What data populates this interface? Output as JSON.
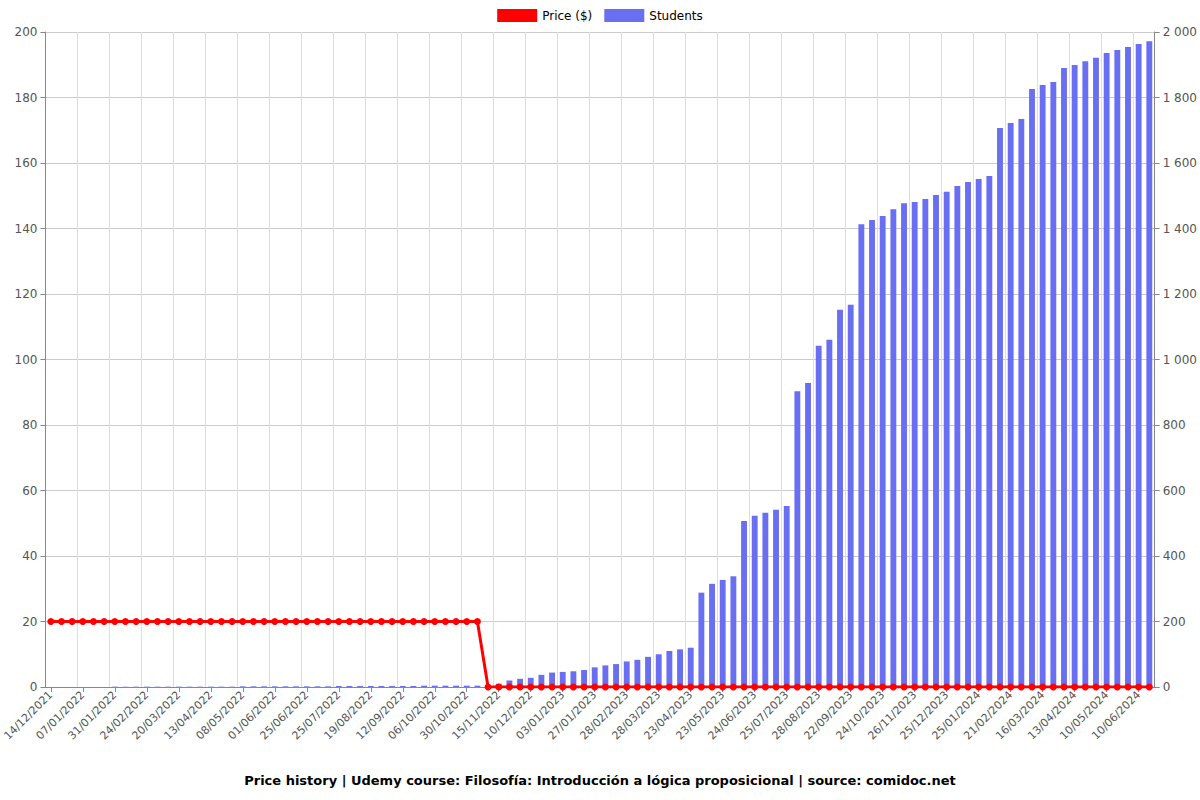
{
  "chart_data": {
    "type": "bar",
    "title": "Price history | Udemy course: Filosofía: Introducción a lógica proposicional | source: comidoc.net",
    "categories": [
      "14/12/2021",
      null,
      null,
      "07/01/2022",
      null,
      null,
      "31/01/2022",
      null,
      null,
      "24/02/2022",
      null,
      null,
      "20/03/2022",
      null,
      null,
      "13/04/2022",
      null,
      null,
      "08/05/2022",
      null,
      null,
      "01/06/2022",
      null,
      null,
      "25/06/2022",
      null,
      null,
      "25/07/2022",
      null,
      null,
      "19/08/2022",
      null,
      null,
      "12/09/2022",
      null,
      null,
      "06/10/2022",
      null,
      null,
      "30/10/2022",
      null,
      null,
      "15/11/2022",
      null,
      null,
      "10/12/2022",
      null,
      null,
      "03/01/2023",
      null,
      null,
      "27/01/2023",
      null,
      null,
      "28/02/2023",
      null,
      null,
      "28/03/2023",
      null,
      null,
      "23/04/2023",
      null,
      null,
      "23/05/2023",
      null,
      null,
      "24/06/2023",
      null,
      null,
      "25/07/2023",
      null,
      null,
      "28/08/2023",
      null,
      null,
      "22/09/2023",
      null,
      null,
      "24/10/2023",
      null,
      null,
      "26/11/2023",
      null,
      null,
      "25/12/2023",
      null,
      null,
      "25/01/2024",
      null,
      null,
      "21/02/2024",
      null,
      null,
      "16/03/2024",
      null,
      null,
      "13/04/2024",
      null,
      null,
      "10/05/2024",
      null,
      null,
      "10/06/2024",
      null
    ],
    "series": [
      {
        "name": "Price ($)",
        "type": "line",
        "color": "#ff0000",
        "marker": "circle",
        "values": [
          20,
          20,
          20,
          20,
          20,
          20,
          20,
          20,
          20,
          20,
          20,
          20,
          20,
          20,
          20,
          20,
          20,
          20,
          20,
          20,
          20,
          20,
          20,
          20,
          20,
          20,
          20,
          20,
          20,
          20,
          20,
          20,
          20,
          20,
          20,
          20,
          20,
          20,
          20,
          20,
          20,
          0,
          0,
          0,
          0,
          0,
          0,
          0,
          0,
          0,
          0,
          0,
          0,
          0,
          0,
          0,
          0,
          0,
          0,
          0,
          0,
          0,
          0,
          0,
          0,
          0,
          0,
          0,
          0,
          0,
          0,
          0,
          0,
          0,
          0,
          0,
          0,
          0,
          0,
          0,
          0,
          0,
          0,
          0,
          0,
          0,
          0,
          0,
          0,
          0,
          0,
          0,
          0,
          0,
          0,
          0,
          0,
          0,
          0,
          0,
          0,
          0,
          0,
          0
        ]
      },
      {
        "name": "Students",
        "type": "bar",
        "color": "#6a6ef0",
        "axis": "y2",
        "values": [
          0,
          0,
          0,
          0,
          0,
          0,
          1,
          1,
          1,
          1,
          1,
          1,
          1,
          1,
          1,
          1,
          1,
          1,
          2,
          2,
          2,
          2,
          2,
          2,
          2,
          2,
          2,
          3,
          3,
          3,
          3,
          3,
          3,
          3,
          3,
          4,
          4,
          4,
          4,
          4,
          4,
          5,
          10,
          20,
          25,
          28,
          37,
          44,
          46,
          48,
          52,
          60,
          66,
          70,
          78,
          83,
          92,
          100,
          110,
          115,
          120,
          288,
          315,
          327,
          338,
          507,
          523,
          532,
          541,
          553,
          903,
          928,
          1042,
          1060,
          1152,
          1167,
          1413,
          1426,
          1438,
          1459,
          1477,
          1481,
          1490,
          1502,
          1512,
          1530,
          1542,
          1551,
          1560,
          1707,
          1722,
          1734,
          1826,
          1838,
          1847,
          1890,
          1899,
          1911,
          1921,
          1936,
          1945,
          1954,
          1963,
          1972
        ]
      }
    ],
    "ylim": [
      0,
      200
    ],
    "yticks": [
      0,
      20,
      40,
      60,
      80,
      100,
      120,
      140,
      160,
      180,
      200
    ],
    "y2lim": [
      0,
      2000
    ],
    "y2ticks": [
      0,
      200,
      400,
      600,
      800,
      {
        "value": 1000,
        "label": "1 000"
      },
      {
        "value": 1200,
        "label": "1 200"
      },
      {
        "value": 1400,
        "label": "1 400"
      },
      {
        "value": 1600,
        "label": "1 600"
      },
      {
        "value": 1800,
        "label": "1 800"
      },
      {
        "value": 2000,
        "label": "2 000"
      }
    ],
    "grid": true,
    "legend": "top"
  }
}
